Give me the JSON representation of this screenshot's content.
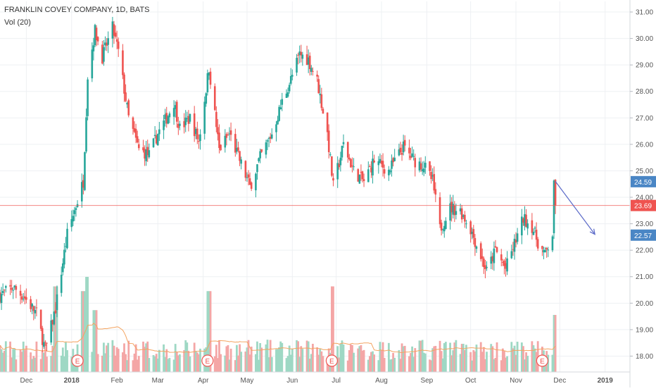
{
  "legend": {
    "title": "FRANKLIN COVEY COMPANY, 1D, BATS",
    "volume": "Vol (20)"
  },
  "colors": {
    "up": "#26a69a",
    "down": "#ef5350",
    "up_volume": "#9ed8c4",
    "down_volume": "#f4a6a6",
    "volume_ma": "#f4a460",
    "price_line": "#ef5350",
    "arrow": "#5b6ac8",
    "badge_blue": "#4a86c5",
    "badge_red": "#ef5350",
    "grid": "#eef0f3"
  },
  "chart_data": {
    "type": "candlestick",
    "y_axis": {
      "ticks": [
        "18.00",
        "19.00",
        "20.00",
        "21.00",
        "22.00",
        "23.00",
        "24.00",
        "25.00",
        "26.00",
        "27.00",
        "28.00",
        "29.00",
        "30.00",
        "31.00"
      ],
      "ylim": [
        17.4,
        31.4
      ]
    },
    "x_axis": {
      "ticks": [
        {
          "label": "Dec",
          "date": "2017-12-01"
        },
        {
          "label": "2018",
          "date": "2018-01-01"
        },
        {
          "label": "Feb",
          "date": "2018-02-01"
        },
        {
          "label": "Mar",
          "date": "2018-03-01"
        },
        {
          "label": "Apr",
          "date": "2018-04-01"
        },
        {
          "label": "May",
          "date": "2018-05-01"
        },
        {
          "label": "Jun",
          "date": "2018-06-01"
        },
        {
          "label": "Jul",
          "date": "2018-07-01"
        },
        {
          "label": "Aug",
          "date": "2018-08-01"
        },
        {
          "label": "Sep",
          "date": "2018-09-01"
        },
        {
          "label": "Oct",
          "date": "2018-10-01"
        },
        {
          "label": "Nov",
          "date": "2018-11-01"
        },
        {
          "label": "Dec",
          "date": "2018-12-01"
        },
        {
          "label": "2019",
          "date": "2019-01-01"
        }
      ],
      "xlim": [
        "2017-11-13",
        "2019-01-18"
      ]
    },
    "price_anchors": [
      [
        "2017-11-13",
        20.3
      ],
      [
        "2017-11-22",
        20.6
      ],
      [
        "2017-11-30",
        20.2
      ],
      [
        "2017-12-08",
        19.6
      ],
      [
        "2017-12-14",
        18.2
      ],
      [
        "2017-12-21",
        19.8
      ],
      [
        "2017-12-29",
        22.6
      ],
      [
        "2018-01-09",
        24.6
      ],
      [
        "2018-01-12",
        28.6
      ],
      [
        "2018-01-17",
        30.3
      ],
      [
        "2018-01-22",
        29.3
      ],
      [
        "2018-01-29",
        30.4
      ],
      [
        "2018-02-02",
        29.5
      ],
      [
        "2018-02-09",
        27.0
      ],
      [
        "2018-02-16",
        25.8
      ],
      [
        "2018-02-23",
        25.6
      ],
      [
        "2018-03-01",
        26.4
      ],
      [
        "2018-03-07",
        27.0
      ],
      [
        "2018-03-12",
        27.6
      ],
      [
        "2018-03-16",
        26.6
      ],
      [
        "2018-03-23",
        27.0
      ],
      [
        "2018-03-29",
        26.1
      ],
      [
        "2018-04-05",
        28.9
      ],
      [
        "2018-04-12",
        25.8
      ],
      [
        "2018-04-19",
        26.4
      ],
      [
        "2018-04-26",
        25.4
      ],
      [
        "2018-05-03",
        24.4
      ],
      [
        "2018-05-10",
        25.5
      ],
      [
        "2018-05-18",
        26.4
      ],
      [
        "2018-05-25",
        27.6
      ],
      [
        "2018-06-01",
        28.6
      ],
      [
        "2018-06-06",
        29.4
      ],
      [
        "2018-06-12",
        29.2
      ],
      [
        "2018-06-18",
        28.4
      ],
      [
        "2018-06-25",
        26.4
      ],
      [
        "2018-06-29",
        24.4
      ],
      [
        "2018-07-06",
        26.0
      ],
      [
        "2018-07-13",
        25.0
      ],
      [
        "2018-07-20",
        24.6
      ],
      [
        "2018-07-27",
        25.4
      ],
      [
        "2018-08-06",
        25.0
      ],
      [
        "2018-08-16",
        25.9
      ],
      [
        "2018-08-23",
        25.4
      ],
      [
        "2018-08-30",
        25.2
      ],
      [
        "2018-09-05",
        24.6
      ],
      [
        "2018-09-10",
        22.8
      ],
      [
        "2018-09-17",
        23.6
      ],
      [
        "2018-09-24",
        23.5
      ],
      [
        "2018-10-01",
        22.8
      ],
      [
        "2018-10-05",
        22.2
      ],
      [
        "2018-10-12",
        21.2
      ],
      [
        "2018-10-18",
        22.0
      ],
      [
        "2018-10-25",
        21.3
      ],
      [
        "2018-11-01",
        22.4
      ],
      [
        "2018-11-06",
        23.2
      ],
      [
        "2018-11-12",
        22.9
      ],
      [
        "2018-11-16",
        22.3
      ],
      [
        "2018-11-21",
        21.8
      ],
      [
        "2018-11-26",
        22.6
      ],
      [
        "2018-11-27",
        24.4
      ],
      [
        "2018-11-28",
        23.69
      ]
    ],
    "volume_spikes": [
      {
        "date": "2017-12-21",
        "value": 0.9
      },
      {
        "date": "2018-01-09",
        "value": 0.85
      },
      {
        "date": "2018-01-12",
        "value": 1.0
      },
      {
        "date": "2018-01-17",
        "value": 0.65
      },
      {
        "date": "2018-04-05",
        "value": 0.85
      },
      {
        "date": "2018-06-29",
        "value": 0.9
      },
      {
        "date": "2018-11-28",
        "value": 0.6
      }
    ],
    "earnings": [
      {
        "date": "2018-01-05",
        "label": "E"
      },
      {
        "date": "2018-04-04",
        "label": "E"
      },
      {
        "date": "2018-06-28",
        "label": "E"
      },
      {
        "date": "2018-11-19",
        "label": "E"
      }
    ],
    "current_price": {
      "value": 23.69,
      "label": "23.69"
    },
    "levels": [
      {
        "value": 24.59,
        "label": "24.59",
        "color": "#4a86c5"
      },
      {
        "value": 22.57,
        "label": "22.57",
        "color": "#4a86c5"
      }
    ],
    "arrow": {
      "from": {
        "date": "2018-11-28",
        "value": 24.6
      },
      "to": {
        "date": "2018-12-25",
        "value": 22.6
      }
    }
  }
}
